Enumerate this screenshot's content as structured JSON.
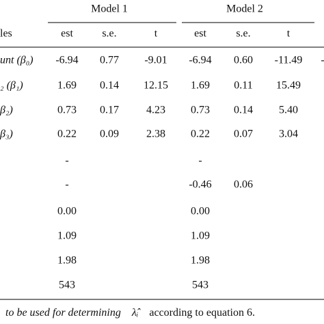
{
  "table": {
    "model_headers": [
      "Model 1",
      "Model 2"
    ],
    "row_header": "les",
    "columns": [
      "est",
      "s.e.",
      "t",
      "est",
      "s.e.",
      "t"
    ],
    "rows": [
      {
        "label": "unt (β₀)",
        "cells": [
          "-6.94",
          "0.77",
          "-9.01",
          "-6.94",
          "0.60",
          "-11.49",
          "-"
        ]
      },
      {
        "label": "₂ (β₁)",
        "cells": [
          "1.69",
          "0.14",
          "12.15",
          "1.69",
          "0.11",
          "15.49",
          null
        ]
      },
      {
        "label": "β₂)",
        "cells": [
          "0.73",
          "0.17",
          "4.23",
          "0.73",
          "0.14",
          "5.40",
          null
        ]
      },
      {
        "label": "β₃)",
        "cells": [
          "0.22",
          "0.09",
          "2.38",
          "0.22",
          "0.07",
          "3.04",
          null
        ]
      },
      {
        "label": null,
        "cells": [
          "-",
          null,
          null,
          "-",
          null,
          null,
          null
        ]
      },
      {
        "label": null,
        "cells": [
          "-",
          null,
          null,
          "-0.46",
          "0.06",
          null,
          null
        ]
      },
      {
        "label": null,
        "cells": [
          "0.00",
          null,
          null,
          "0.00",
          null,
          null,
          null
        ]
      },
      {
        "label": null,
        "cells": [
          "1.09",
          null,
          null,
          "1.09",
          null,
          null,
          null
        ]
      },
      {
        "label": null,
        "cells": [
          "1.98",
          null,
          null,
          "1.98",
          null,
          null,
          null
        ]
      },
      {
        "label": null,
        "cells": [
          "543",
          null,
          null,
          "543",
          null,
          null,
          null
        ]
      }
    ]
  },
  "footnote": {
    "italic": "to be used for determining",
    "symbol": "λ̂ᵢ",
    "rest": "according to equation 6."
  }
}
